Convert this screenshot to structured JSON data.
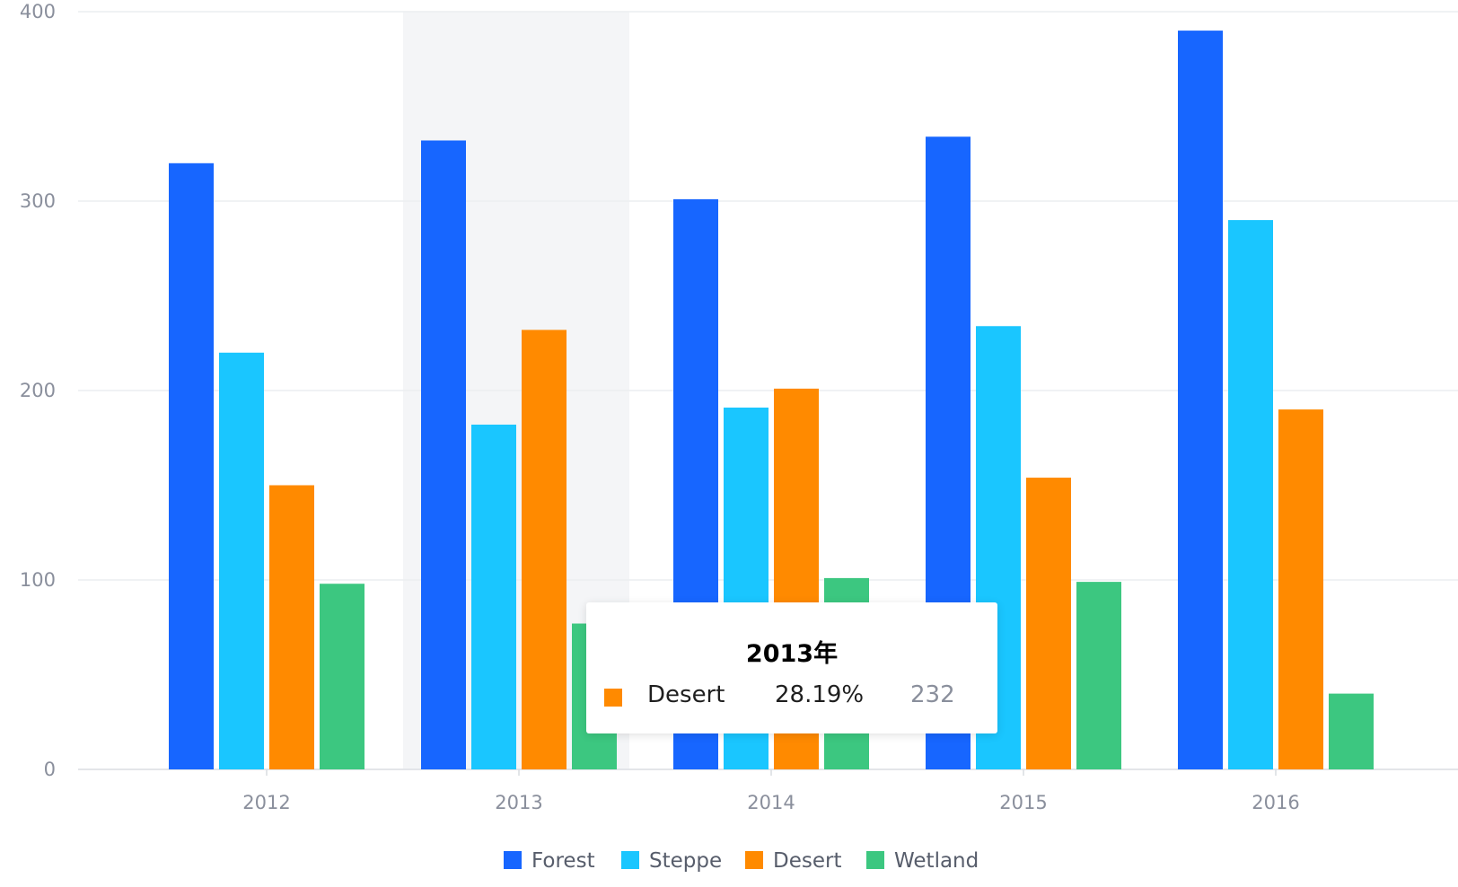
{
  "chart_data": {
    "type": "bar",
    "categories": [
      "2012",
      "2013",
      "2014",
      "2015",
      "2016"
    ],
    "series": [
      {
        "name": "Forest",
        "color": "#1766ff",
        "values": [
          320,
          332,
          301,
          334,
          390
        ]
      },
      {
        "name": "Steppe",
        "color": "#1ac6ff",
        "values": [
          220,
          182,
          191,
          234,
          290
        ]
      },
      {
        "name": "Desert",
        "color": "#ff8a00",
        "values": [
          150,
          232,
          201,
          154,
          190
        ]
      },
      {
        "name": "Wetland",
        "color": "#3cc780",
        "values": [
          98,
          77,
          101,
          99,
          40
        ]
      }
    ],
    "ylim": [
      0,
      400
    ],
    "yticks": [
      0,
      100,
      200,
      300,
      400
    ],
    "grid": true,
    "legend_position": "bottom-center",
    "highlighted_category": "2013"
  },
  "tooltip": {
    "title": "2013年",
    "series_name": "Desert",
    "percent": "28.19%",
    "value": "232",
    "color": "#ff8a00"
  }
}
